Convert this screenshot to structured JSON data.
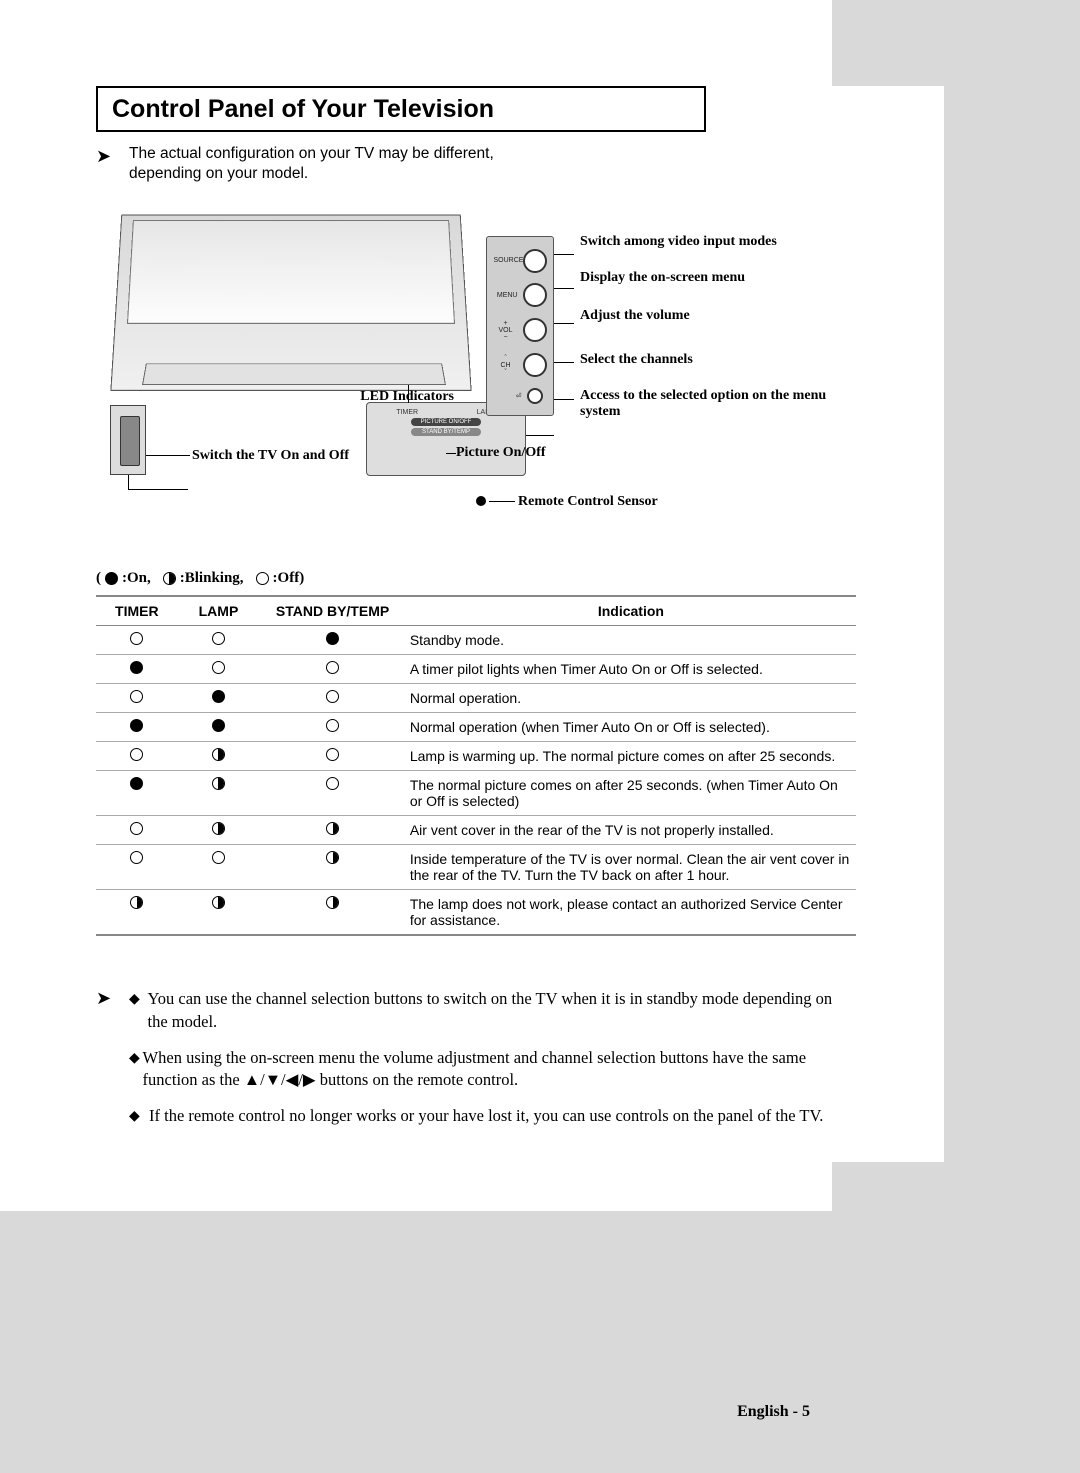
{
  "title": "Control Panel of Your Television",
  "intro": "The actual configuration on your TV may be different, depending on your model.",
  "diagram": {
    "labels": {
      "source": "Switch among video input modes",
      "menu": "Display the on-screen menu",
      "vol": "Adjust the volume",
      "ch": "Select the channels",
      "enter": "Access to the selected option on the menu system",
      "led": "LED Indicators",
      "pic": "Picture On/Off",
      "power": "Switch the TV On and Off",
      "sensor": "Remote Control Sensor"
    },
    "buttons": {
      "source": "SOURCE",
      "menu": "MENU",
      "vol": "VOL",
      "ch": "CH"
    },
    "led_panel": {
      "timer": "TIMER",
      "lamp": "LAMP",
      "pic": "PICTURE ON/OFF",
      "stand": "STAND BY/TEMP"
    }
  },
  "legend": {
    "on": ":On,",
    "blinking": ":Blinking,",
    "off": ":Off)"
  },
  "table": {
    "headers": {
      "timer": "TIMER",
      "lamp": "LAMP",
      "stand": "STAND BY/TEMP",
      "ind": "Indication"
    },
    "rows": [
      {
        "t": "open",
        "l": "open",
        "s": "full",
        "i": "Standby mode."
      },
      {
        "t": "full",
        "l": "open",
        "s": "open",
        "i": "A timer pilot lights when Timer Auto On or Off is selected."
      },
      {
        "t": "open",
        "l": "full",
        "s": "open",
        "i": "Normal operation."
      },
      {
        "t": "full",
        "l": "full",
        "s": "open",
        "i": "Normal operation (when Timer Auto On or Off is selected)."
      },
      {
        "t": "open",
        "l": "half",
        "s": "open",
        "i": "Lamp is warming up. The normal picture comes on after 25 seconds."
      },
      {
        "t": "full",
        "l": "half",
        "s": "open",
        "i": "The normal picture comes on after 25 seconds. (when Timer Auto On or Off is selected)"
      },
      {
        "t": "open",
        "l": "half",
        "s": "half",
        "i": "Air vent cover in the rear of the TV is not properly installed."
      },
      {
        "t": "open",
        "l": "open",
        "s": "half",
        "i": "Inside temperature of the TV is over normal. Clean the air vent cover in the rear of the TV. Turn the TV back on after 1 hour."
      },
      {
        "t": "half",
        "l": "half",
        "s": "half",
        "i": "The lamp does not work, please contact an authorized Service Center for assistance."
      }
    ]
  },
  "notes": [
    "You can use the channel selection buttons to switch on the TV when it is in standby mode depending on the model.",
    "When using the on-screen menu the volume adjustment and channel selection buttons have the same function as the ▲/▼/◀/▶ buttons on the remote control.",
    "If the remote control no longer works or your have lost it, you can use controls on the panel of the TV."
  ],
  "footer": "English - 5"
}
